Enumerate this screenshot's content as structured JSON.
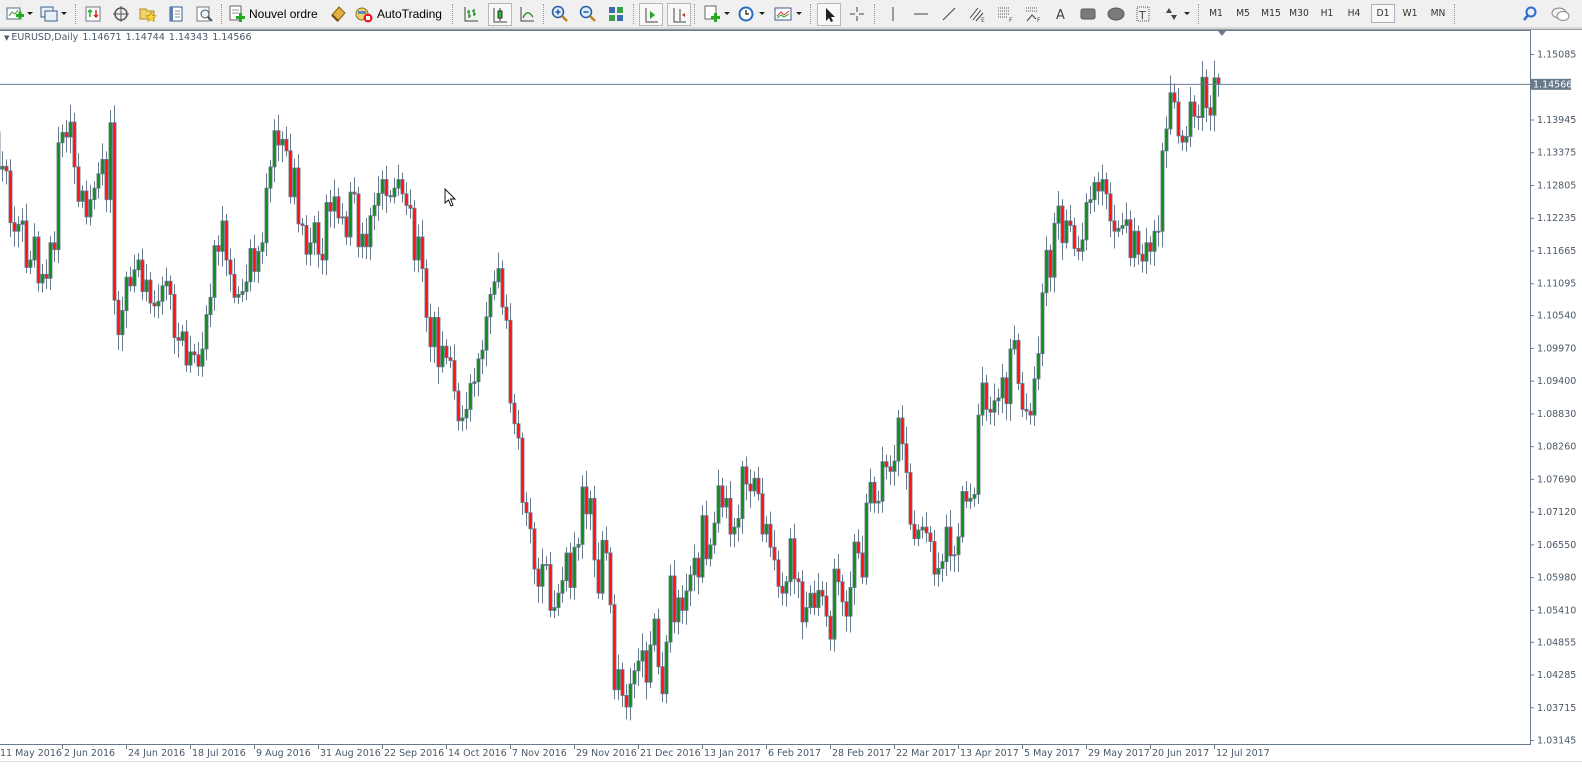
{
  "toolbar": {
    "new_order_label": "Nouvel ordre",
    "autotrading_label": "AutoTrading",
    "icons": [
      "new-chart-icon",
      "profiles-icon",
      "market-watch-icon",
      "navigator-icon",
      "favorites-icon",
      "data-window-icon",
      "strategy-tester-icon",
      "new-order-icon",
      "metaeditor-icon",
      "autotrading-icon",
      "bar-chart-icon",
      "candlesticks-icon",
      "line-chart-icon",
      "zoom-in-icon",
      "zoom-out-icon",
      "tile-windows-icon",
      "auto-scroll-icon",
      "chart-shift-icon",
      "indicators-icon",
      "periods-icon",
      "templates-icon",
      "cursor-icon",
      "crosshair-icon",
      "vertical-line-icon",
      "horizontal-line-icon",
      "trendline-icon",
      "equidistant-channel-icon",
      "fibonacci-retracement-icon",
      "fibonacci-fan-icon",
      "text-icon",
      "rectangle-icon",
      "ellipse-icon",
      "text-label-icon",
      "arrows-icon",
      "search-icon",
      "chat-icon"
    ],
    "timeframes": [
      "M1",
      "M5",
      "M15",
      "M30",
      "H1",
      "H4",
      "D1",
      "W1",
      "MN"
    ],
    "active_timeframe": "D1"
  },
  "chart_header": {
    "symbol": "EURUSD,Daily",
    "open": "1.14671",
    "high": "1.14744",
    "low": "1.14343",
    "close": "1.14566"
  },
  "colors": {
    "bull_body": "#0f8a1a",
    "bear_body": "#ff1010",
    "outline": "#687a8c",
    "axis_text": "#4a5868",
    "bid_line": "#687a8c",
    "price_label_bg": "#687a8c"
  },
  "chart_data": {
    "type": "candlestick",
    "symbol": "EURUSD",
    "timeframe": "Daily",
    "current_price": "1.14566",
    "ylim": [
      1.03145,
      1.15085
    ],
    "y_ticks": [
      "1.15085",
      "1.13945",
      "1.13375",
      "1.12805",
      "1.12235",
      "1.11665",
      "1.11095",
      "1.10540",
      "1.09970",
      "1.09400",
      "1.08830",
      "1.08260",
      "1.07690",
      "1.07120",
      "1.06550",
      "1.05980",
      "1.05410",
      "1.04855",
      "1.04285",
      "1.03715",
      "1.03145"
    ],
    "x_ticks": [
      "11 May 2016",
      "2 Jun 2016",
      "24 Jun 2016",
      "18 Jul 2016",
      "9 Aug 2016",
      "31 Aug 2016",
      "22 Sep 2016",
      "14 Oct 2016",
      "7 Nov 2016",
      "29 Nov 2016",
      "21 Dec 2016",
      "13 Jan 2017",
      "6 Feb 2017",
      "28 Feb 2017",
      "22 Mar 2017",
      "13 Apr 2017",
      "5 May 2017",
      "29 May 2017",
      "20 Jun 2017",
      "12 Jul 2017"
    ],
    "first_open": 1.1425,
    "close": [
      1.1373,
      1.1308,
      1.1313,
      1.1305,
      1.1215,
      1.12,
      1.1212,
      1.1218,
      1.1137,
      1.115,
      1.119,
      1.111,
      1.1125,
      1.1118,
      1.118,
      1.1168,
      1.1354,
      1.1372,
      1.1364,
      1.139,
      1.1312,
      1.1252,
      1.127,
      1.1225,
      1.1255,
      1.1275,
      1.13,
      1.1325,
      1.1255,
      1.1389,
      1.108,
      1.102,
      1.1062,
      1.112,
      1.1105,
      1.1133,
      1.115,
      1.1095,
      1.1115,
      1.1075,
      1.107,
      1.1078,
      1.1105,
      1.1113,
      1.109,
      1.1015,
      1.101,
      1.1025,
      1.0967,
      1.099,
      1.0985,
      1.0965,
      1.0995,
      1.1055,
      1.1085,
      1.1175,
      1.1165,
      1.1218,
      1.115,
      1.1125,
      1.1085,
      1.109,
      1.1095,
      1.1112,
      1.117,
      1.113,
      1.1165,
      1.118,
      1.1275,
      1.1312,
      1.1375,
      1.135,
      1.136,
      1.134,
      1.126,
      1.131,
      1.1213,
      1.121,
      1.116,
      1.118,
      1.1215,
      1.116,
      1.115,
      1.125,
      1.1235,
      1.126,
      1.1223,
      1.1225,
      1.119,
      1.1268,
      1.1265,
      1.1173,
      1.1195,
      1.1173,
      1.1227,
      1.1245,
      1.1266,
      1.129,
      1.1262,
      1.126,
      1.1275,
      1.129,
      1.1265,
      1.1245,
      1.124,
      1.115,
      1.119,
      1.1135,
      1.105,
      1.0999,
      1.105,
      1.0964,
      1.1,
      1.098,
      1.0975,
      1.0922,
      1.087,
      1.0875,
      1.089,
      1.0935,
      1.0938,
      1.0978,
      1.0993,
      1.1051,
      1.109,
      1.1112,
      1.1135,
      1.1068,
      1.1045,
      1.0901,
      1.0865,
      1.084,
      1.0728,
      1.071,
      1.0682,
      1.0612,
      1.0582,
      1.062,
      1.062,
      1.054,
      1.0545,
      1.057,
      1.0592,
      1.064,
      1.058,
      1.065,
      1.0655,
      1.0755,
      1.0708,
      1.0735,
      1.0628,
      1.057,
      1.0662,
      1.064,
      1.055,
      1.0402,
      1.0437,
      1.0392,
      1.0372,
      1.0412,
      1.0435,
      1.0452,
      1.047,
      1.0415,
      1.048,
      1.0525,
      1.0442,
      1.0395,
      1.0485,
      1.06,
      1.052,
      1.0562,
      1.054,
      1.0574,
      1.0602,
      1.0631,
      1.0598,
      1.0705,
      1.063,
      1.0654,
      1.0692,
      1.0757,
      1.072,
      1.0735,
      1.0673,
      1.0685,
      1.07,
      1.079,
      1.076,
      1.0748,
      1.077,
      1.0743,
      1.0673,
      1.069,
      1.065,
      1.0628,
      1.0582,
      1.057,
      1.059,
      1.0665,
      1.0595,
      1.059,
      1.052,
      1.0545,
      1.057,
      1.0545,
      1.0575,
      1.0565,
      1.053,
      1.049,
      1.0612,
      1.059,
      1.0555,
      1.053,
      1.058,
      1.0659,
      1.064,
      1.0598,
      1.0727,
      1.0763,
      1.0727,
      1.073,
      1.0799,
      1.079,
      1.0782,
      1.08,
      1.0875,
      1.083,
      1.078,
      1.069,
      1.0665,
      1.068,
      1.0685,
      1.0675,
      1.066,
      1.0603,
      1.0613,
      1.0625,
      1.0685,
      1.0635,
      1.0637,
      1.0668,
      1.0747,
      1.073,
      1.0735,
      1.0742,
      1.088,
      1.0936,
      1.089,
      1.0885,
      1.0905,
      1.091,
      1.0945,
      1.09,
      1.0995,
      1.101,
      1.0935,
      1.089,
      1.0887,
      1.088,
      1.0943,
      1.0987,
      1.1093,
      1.1167,
      1.112,
      1.1214,
      1.1244,
      1.118,
      1.1218,
      1.121,
      1.117,
      1.1165,
      1.1185,
      1.125,
      1.1255,
      1.1285,
      1.127,
      1.129,
      1.1265,
      1.1218,
      1.12,
      1.1205,
      1.121,
      1.122,
      1.1154,
      1.12,
      1.116,
      1.1148,
      1.118,
      1.1165,
      1.12,
      1.12,
      1.134,
      1.1378,
      1.1441,
      1.1425,
      1.1366,
      1.1355,
      1.1365,
      1.1425,
      1.14,
      1.1398,
      1.1468,
      1.1415,
      1.1402,
      1.1467,
      1.14566
    ],
    "last_bar": {
      "open": 1.14671,
      "high": 1.14744,
      "low": 1.14343,
      "close": 1.14566
    },
    "grid": false
  }
}
